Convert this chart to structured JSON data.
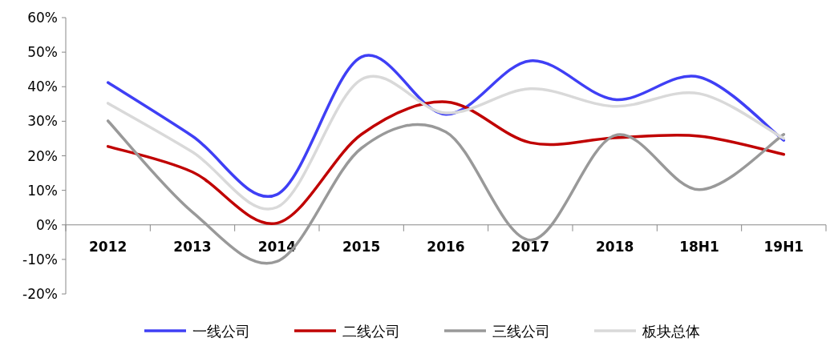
{
  "chart_data": {
    "type": "line",
    "categories": [
      "2012",
      "2013",
      "2014",
      "2015",
      "2016",
      "2017",
      "2018",
      "18H1",
      "19H1"
    ],
    "series": [
      {
        "name": "一线公司",
        "color": "#3f3ff5",
        "values": [
          41.2,
          25.7,
          8.8,
          48.6,
          32,
          47.5,
          36.3,
          42.8,
          24.5
        ]
      },
      {
        "name": "二线公司",
        "color": "#c00000",
        "values": [
          22.7,
          15.3,
          0.5,
          26.2,
          35.6,
          23.8,
          25.2,
          25.7,
          20.4
        ]
      },
      {
        "name": "三线公司",
        "color": "#999999",
        "values": [
          30.1,
          3.7,
          -10.6,
          22.2,
          26.9,
          -4.4,
          25.9,
          10.2,
          26.2
        ]
      },
      {
        "name": "板块总体",
        "color": "#d9d9d9",
        "values": [
          35.2,
          21.1,
          5.1,
          42.1,
          32.4,
          39.4,
          34.3,
          38,
          25
        ]
      }
    ],
    "ylim": [
      -20,
      60
    ],
    "yticks": [
      {
        "value": -20,
        "label": "-20%"
      },
      {
        "value": -10,
        "label": "-10%"
      },
      {
        "value": 0,
        "label": "0%"
      },
      {
        "value": 10,
        "label": "10%"
      },
      {
        "value": 20,
        "label": "20%"
      },
      {
        "value": 30,
        "label": "30%"
      },
      {
        "value": 40,
        "label": "40%"
      },
      {
        "value": 50,
        "label": "50%"
      },
      {
        "value": 60,
        "label": "60%"
      }
    ],
    "grid": false,
    "legend": "bottom",
    "line_style": "solid"
  }
}
